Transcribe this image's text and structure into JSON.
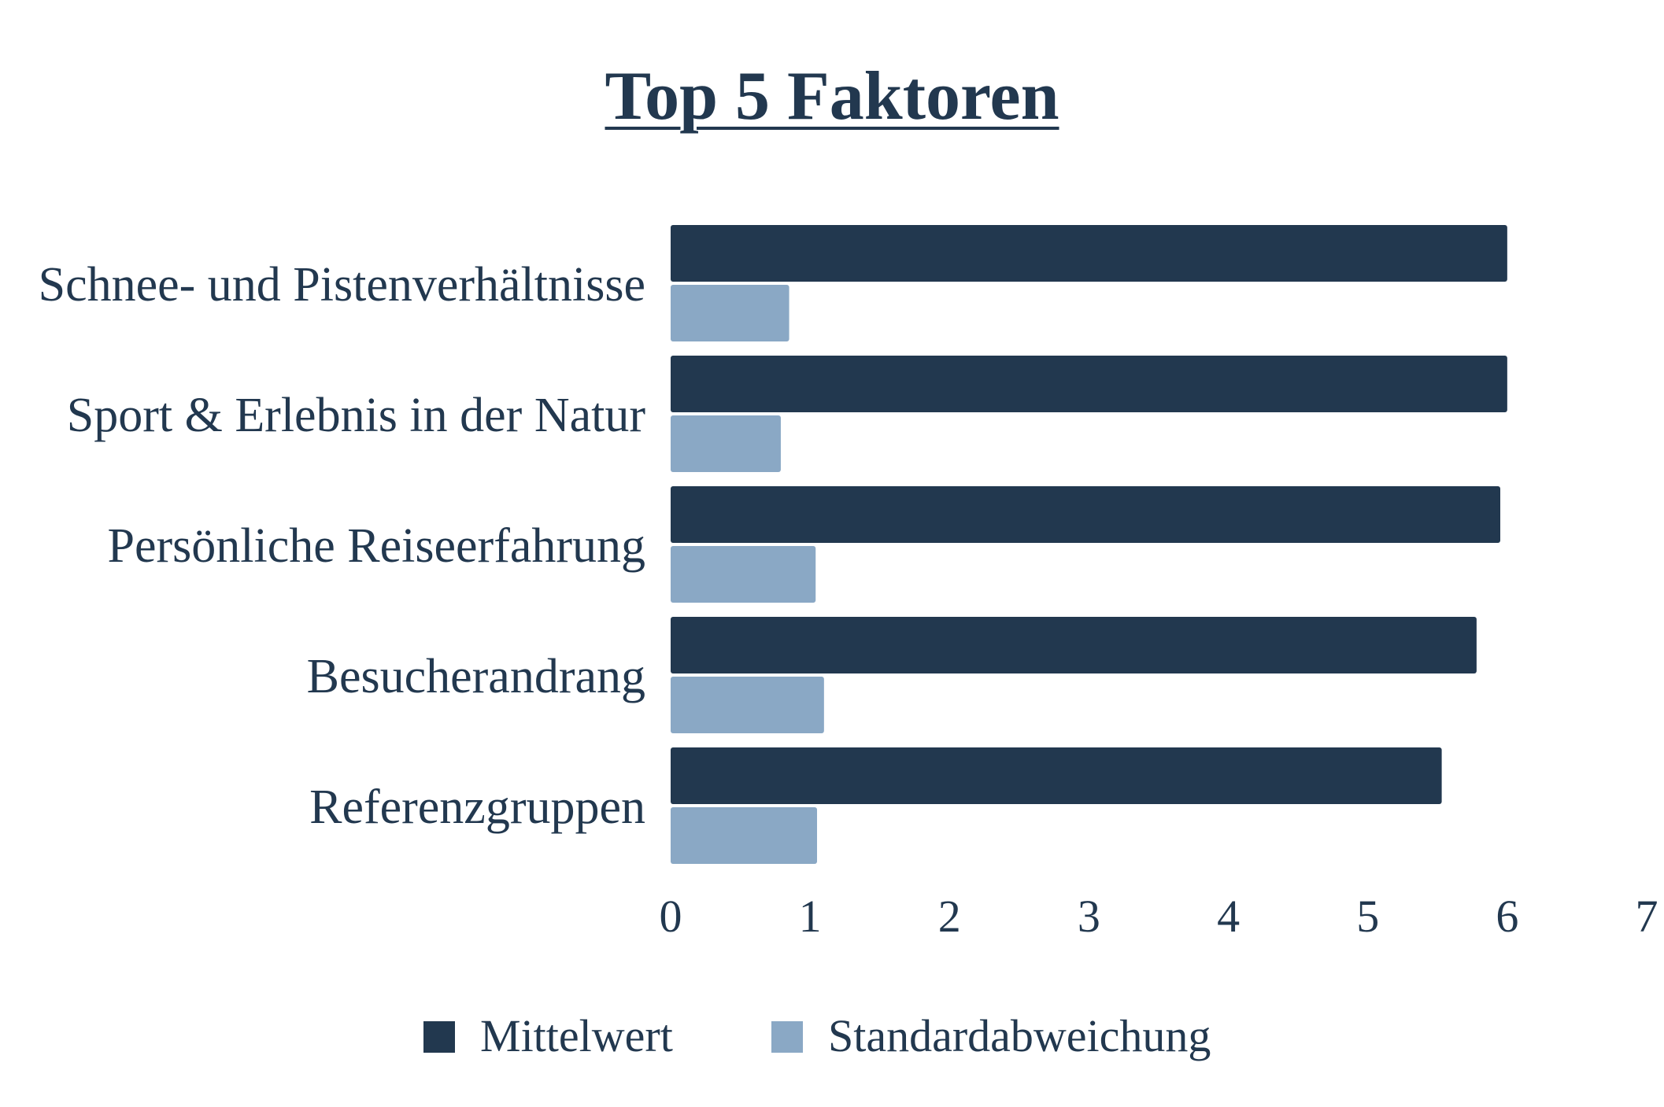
{
  "chart_data": {
    "type": "bar",
    "orientation": "horizontal",
    "title": "Top 5 Faktoren",
    "categories": [
      "Schnee- und Pistenverhältnisse",
      "Sport & Erlebnis in der Natur",
      "Persönliche Reiseerfahrung",
      "Besucherandrang",
      "Referenzgruppen"
    ],
    "series": [
      {
        "name": "Mittelwert",
        "color": "#22384f",
        "values": [
          6.0,
          6.0,
          5.95,
          5.78,
          5.53
        ]
      },
      {
        "name": "Standardabweichung",
        "color": "#8aa8c5",
        "values": [
          0.85,
          0.79,
          1.04,
          1.1,
          1.05
        ]
      }
    ],
    "xlim": [
      0,
      7
    ],
    "xticks": [
      "0",
      "1",
      "2",
      "3",
      "4",
      "5",
      "6",
      "7"
    ],
    "grid": false,
    "legend": "bottom"
  }
}
